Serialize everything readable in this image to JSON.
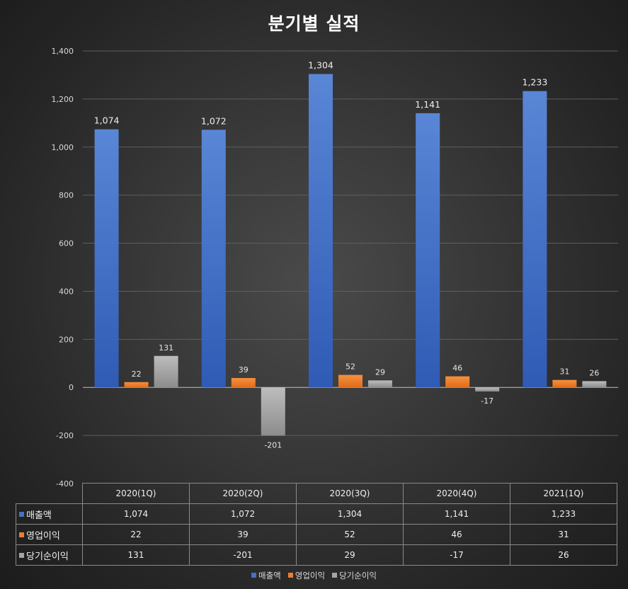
{
  "chart_data": {
    "type": "bar",
    "title": "분기별 실적",
    "categories": [
      "2020(1Q)",
      "2020(2Q)",
      "2020(3Q)",
      "2020(4Q)",
      "2021(1Q)"
    ],
    "series": [
      {
        "name": "매출액",
        "values": [
          1074,
          1072,
          1304,
          1141,
          1233
        ],
        "color": "#4472c4",
        "labels": [
          "1,074",
          "1,072",
          "1,304",
          "1,141",
          "1,233"
        ]
      },
      {
        "name": "영업이익",
        "values": [
          22,
          39,
          52,
          46,
          31
        ],
        "color": "#ed7d31",
        "labels": [
          "22",
          "39",
          "52",
          "46",
          "31"
        ]
      },
      {
        "name": "당기순이익",
        "values": [
          131,
          -201,
          29,
          -17,
          26
        ],
        "color": "#a5a5a5",
        "labels": [
          "131",
          "-201",
          "29",
          "-17",
          "26"
        ]
      }
    ],
    "ylim": [
      -400,
      1400
    ],
    "yticks": [
      -400,
      -200,
      0,
      200,
      400,
      600,
      800,
      1000,
      1200,
      1400
    ],
    "ytick_labels": [
      "-400",
      "-200",
      "0",
      "200",
      "400",
      "600",
      "800",
      "1,000",
      "1,200",
      "1,400"
    ],
    "grid": true,
    "legend": "bottom",
    "data_table": true
  }
}
